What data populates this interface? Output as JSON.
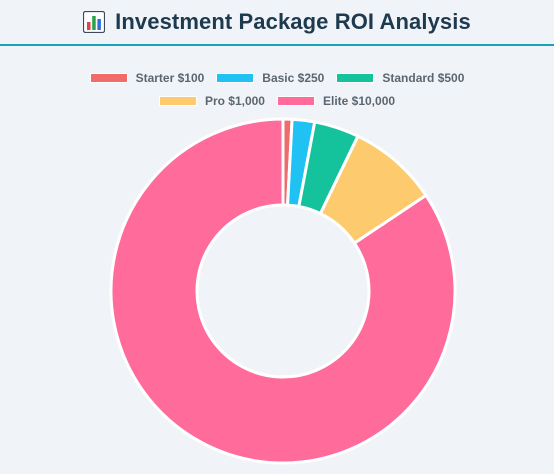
{
  "header": {
    "title": "Investment Package ROI Analysis",
    "icon": "bar-chart-icon"
  },
  "colors": {
    "title": "#1e3a4f",
    "rule": "#16a4b4",
    "background": "#f0f4f8"
  },
  "chart_data": {
    "type": "pie",
    "variant": "doughnut",
    "title": "",
    "legend_position": "top",
    "categories": [
      "Starter $100",
      "Basic $250",
      "Standard $500",
      "Pro $1,000",
      "Elite $10,000"
    ],
    "values": [
      100,
      250,
      500,
      1000,
      10000
    ],
    "colors": [
      "#f26b6b",
      "#1fc2f3",
      "#14c29b",
      "#fdca6d",
      "#ff6b9b"
    ]
  }
}
